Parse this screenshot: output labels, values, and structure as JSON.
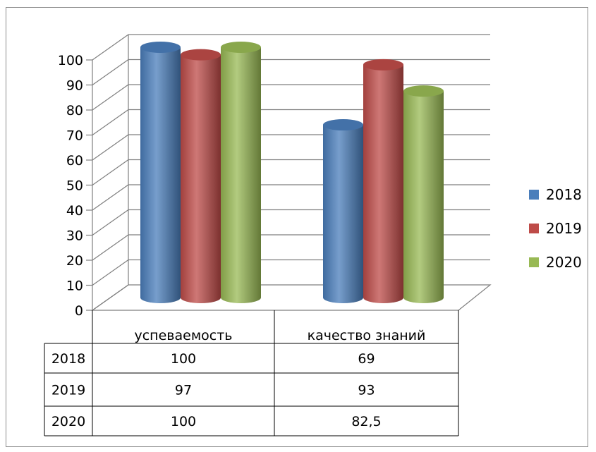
{
  "chart_data": {
    "type": "bar",
    "categories": [
      "успеваемость",
      "качество знаний"
    ],
    "series": [
      {
        "name": "2018",
        "values": [
          100,
          69
        ],
        "color": "#4a7ebb"
      },
      {
        "name": "2019",
        "values": [
          97,
          93
        ],
        "color": "#be4b48"
      },
      {
        "name": "2020",
        "values": [
          100,
          82.5
        ],
        "color": "#98b954"
      }
    ],
    "table": {
      "rows": [
        {
          "label": "2018",
          "cells": [
            "100",
            "69"
          ]
        },
        {
          "label": "2019",
          "cells": [
            "97",
            "93"
          ]
        },
        {
          "label": "2020",
          "cells": [
            "100",
            "82,5"
          ]
        }
      ]
    },
    "y_ticks": [
      "0",
      "10",
      "20",
      "30",
      "40",
      "50",
      "60",
      "70",
      "80",
      "90",
      "100"
    ],
    "ylim": [
      0,
      100
    ],
    "grid": true,
    "legend_position": "right",
    "style": "3d-cylinder"
  }
}
